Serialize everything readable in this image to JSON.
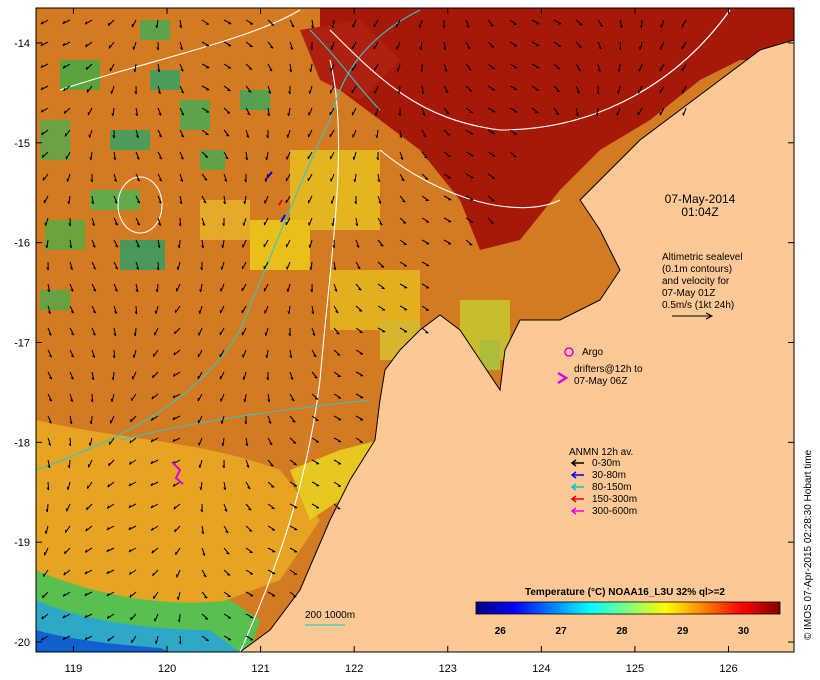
{
  "map": {
    "lon_range": [
      118.6,
      126.7
    ],
    "lat_range": [
      -20.1,
      -13.65
    ],
    "lon_ticks": [
      119,
      120,
      121,
      122,
      123,
      124,
      125,
      126
    ],
    "lat_ticks": [
      -14,
      -15,
      -16,
      -17,
      -18,
      -19,
      -20
    ],
    "lon_tick_labels": [
      "119",
      "120",
      "121",
      "122",
      "123",
      "124",
      "125",
      "126"
    ],
    "lat_tick_labels": [
      "-14",
      "-15",
      "-16",
      "-17",
      "-18",
      "-19",
      "-20"
    ],
    "land_color": "#fcc896",
    "coast_color": "#000000",
    "contour_sealevel_color": "#ffffff",
    "contour_bathy_color": "#33c7c7"
  },
  "datetime": {
    "line1": "07-May-2014",
    "line2": "01:04Z"
  },
  "altimetry_note": {
    "line1": "Altimetric sealevel",
    "line2": "(0.1m contours)",
    "line3": "and velocity for",
    "line4": "07-May 01Z",
    "line5": "0.5m/s (1kt 24h)"
  },
  "argo_legend": {
    "label": "Argo",
    "color": "#e000e0"
  },
  "drifter_legend": {
    "line1": "drifters@12h to",
    "line2": "07-May 06Z",
    "color": "#e000e0"
  },
  "anmn_legend": {
    "title": "ANMN 12h av.",
    "items": [
      {
        "label": "0-30m",
        "color": "#000000"
      },
      {
        "label": "30-80m",
        "color": "#0000ee"
      },
      {
        "label": "80-150m",
        "color": "#00c8c8"
      },
      {
        "label": "150-300m",
        "color": "#ee0000"
      },
      {
        "label": "300-600m",
        "color": "#ee00ee"
      }
    ]
  },
  "bathy_legend": {
    "label": "200  1000m"
  },
  "colorbar": {
    "title": "Temperature (°C) NOAA16_L3U 32% ql>=2",
    "range": [
      25.6,
      30.6
    ],
    "ticks": [
      26,
      27,
      28,
      29,
      30
    ],
    "tick_labels": [
      "26",
      "27",
      "28",
      "29",
      "30"
    ],
    "colors": [
      "#00007f",
      "#0000ff",
      "#0080ff",
      "#00ffff",
      "#80ff80",
      "#ffff00",
      "#ff8000",
      "#ff0000",
      "#7f0000"
    ]
  },
  "credit": {
    "text": "© IMOS 07-Apr-2015 02:28:30 Hobart time"
  }
}
